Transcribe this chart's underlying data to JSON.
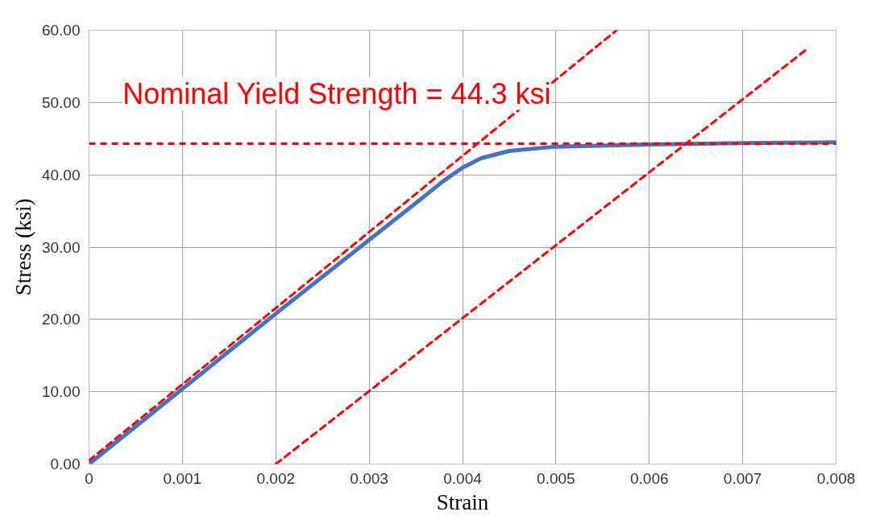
{
  "chart_data": {
    "type": "line",
    "xlabel": "Strain",
    "ylabel": "Stress (ksi)",
    "xlim": [
      0,
      0.008
    ],
    "ylim": [
      0,
      60
    ],
    "xticks": [
      0,
      0.001,
      0.002,
      0.003,
      0.004,
      0.005,
      0.006,
      0.007,
      0.008
    ],
    "yticks": [
      {
        "value": 0,
        "label": "0.00"
      },
      {
        "value": 10,
        "label": "10.00"
      },
      {
        "value": 20,
        "label": "20.00"
      },
      {
        "value": 30,
        "label": "30.00"
      },
      {
        "value": 40,
        "label": "40.00"
      },
      {
        "value": 50,
        "label": "50.00"
      },
      {
        "value": 60,
        "label": "60.00"
      }
    ],
    "grid": true,
    "series": [
      {
        "color": "#4472c4",
        "line_style": "solid",
        "x": [
          0,
          0.001,
          0.002,
          0.003,
          0.0035,
          0.0038,
          0.004,
          0.0042,
          0.0045,
          0.005,
          0.006,
          0.007,
          0.008
        ],
        "values": [
          0,
          10.4,
          20.8,
          31.0,
          36.1,
          39.2,
          41.0,
          42.3,
          43.3,
          43.9,
          44.2,
          44.4,
          44.5
        ]
      },
      {
        "color": "#ff0000",
        "line_style": "dashed",
        "x": [
          0,
          0.00565
        ],
        "values": [
          0.5,
          60
        ]
      },
      {
        "color": "#ff0000",
        "line_style": "dashed",
        "x": [
          0.002,
          0.0077
        ],
        "values": [
          0,
          57.5
        ]
      }
    ],
    "ref_lines": [
      {
        "axis": "y",
        "value": 44.3,
        "label": "Nominal Yield Strength = 44.3 ksi",
        "color": "#ff0000",
        "line_style": "dashed"
      }
    ]
  }
}
